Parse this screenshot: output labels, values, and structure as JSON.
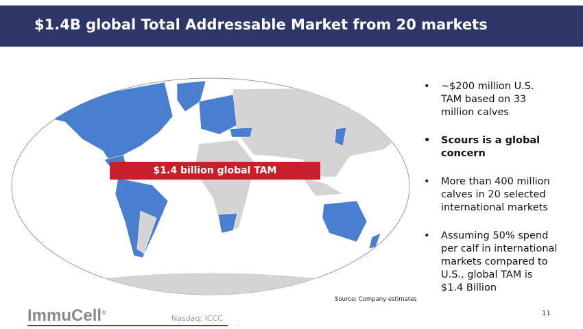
{
  "header": {
    "title": "$1.4B global Total Addressable Market from 20 markets"
  },
  "map": {
    "banner": "$1.4 billion global TAM",
    "source": "Source: Company estimates"
  },
  "bullets": [
    {
      "text": "~$200 million U.S. TAM based on 33 million calves",
      "bold": false
    },
    {
      "text": "Scours is a global concern",
      "bold": true
    },
    {
      "text": "More than 400 million calves in 20 selected international markets",
      "bold": false
    },
    {
      "text": "Assuming 50% spend per calf in international markets compared to U.S., global TAM is $1.4 Billion",
      "bold": false
    }
  ],
  "footer": {
    "logo": "ImmuCell",
    "logo_mark": "®",
    "ticker": "Nasdaq: ICCC",
    "page": "11"
  }
}
